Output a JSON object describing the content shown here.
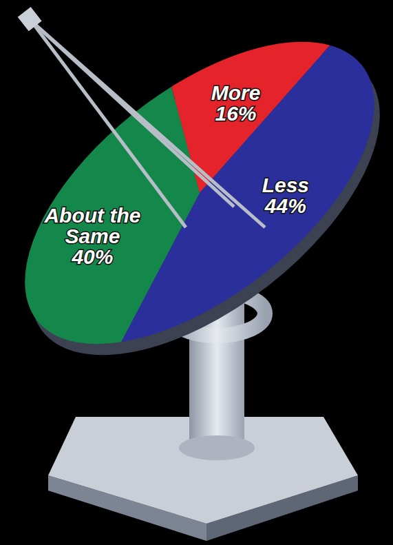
{
  "chart_data": {
    "type": "pie",
    "categories": [
      "More",
      "Less",
      "About the Same"
    ],
    "values": [
      16,
      44,
      40
    ],
    "value_labels": [
      "16%",
      "44%",
      "40%"
    ],
    "colors": [
      "#e4232b",
      "#2b2f9c",
      "#14884a"
    ],
    "data_labels": true
  }
}
